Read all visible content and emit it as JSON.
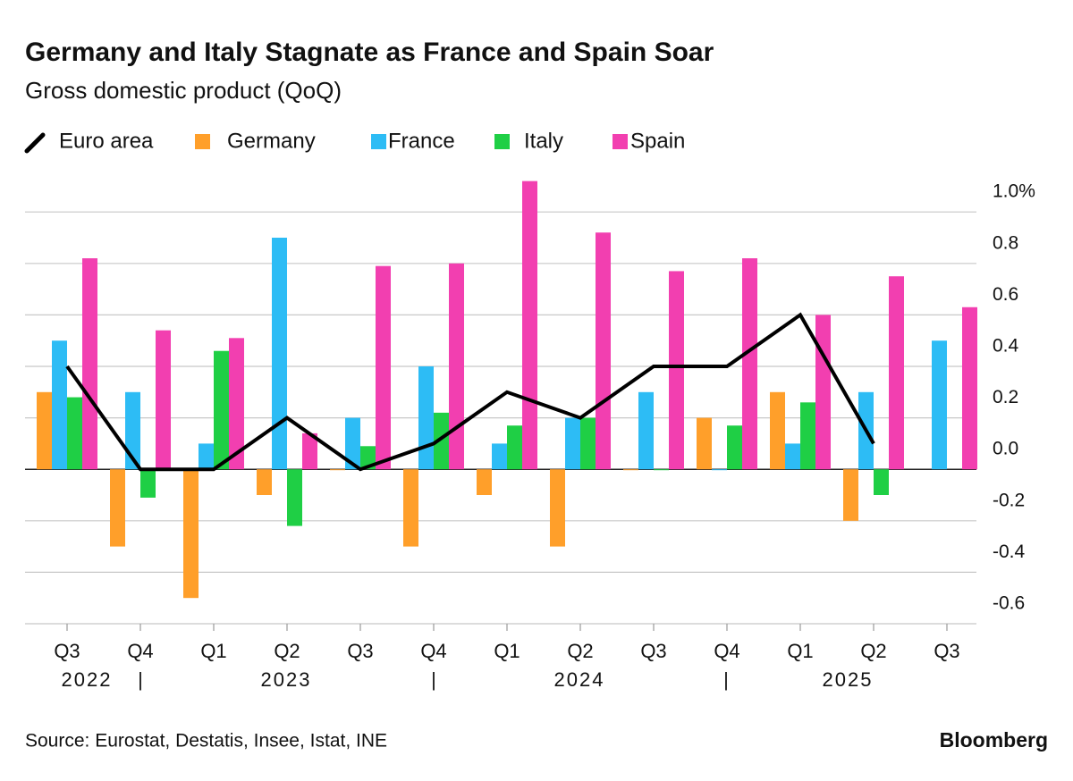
{
  "chart_data": {
    "type": "bar",
    "title": "Germany and Italy Stagnate as France and Spain Soar",
    "subtitle": "Gross domestic product (QoQ)",
    "source": "Source: Eurostat, Destatis, Insee, Istat, INE",
    "brand": "Bloomberg",
    "categories": [
      "Q3",
      "Q4",
      "Q1",
      "Q2",
      "Q3",
      "Q4",
      "Q1",
      "Q2",
      "Q3",
      "Q4",
      "Q1",
      "Q2",
      "Q3"
    ],
    "years": [
      "2022",
      "2023",
      "2024",
      "2025"
    ],
    "series": [
      {
        "name": "Euro area",
        "type": "line",
        "color": "#000000",
        "values": [
          0.4,
          0.0,
          0.0,
          0.2,
          0.0,
          0.1,
          0.3,
          0.2,
          0.4,
          0.4,
          0.6,
          0.1,
          null
        ]
      },
      {
        "name": "Germany",
        "type": "bar",
        "color": "#ff9f2a",
        "values": [
          0.3,
          -0.3,
          -0.5,
          -0.1,
          0.0,
          -0.3,
          -0.1,
          -0.3,
          0.0,
          0.2,
          0.3,
          -0.2,
          null
        ]
      },
      {
        "name": "France",
        "type": "bar",
        "color": "#2dbcf5",
        "values": [
          0.5,
          0.3,
          0.1,
          0.9,
          0.2,
          0.4,
          0.1,
          0.2,
          0.3,
          0.0,
          0.1,
          0.3,
          0.5
        ]
      },
      {
        "name": "Italy",
        "type": "bar",
        "color": "#1fcf45",
        "values": [
          0.28,
          -0.11,
          0.46,
          -0.22,
          0.09,
          0.22,
          0.17,
          0.2,
          0.0,
          0.17,
          0.26,
          -0.1,
          null
        ]
      },
      {
        "name": "Spain",
        "type": "bar",
        "color": "#f23fb0",
        "values": [
          0.82,
          0.54,
          0.51,
          0.14,
          0.79,
          0.8,
          1.12,
          0.92,
          0.77,
          0.82,
          0.6,
          0.75,
          0.63
        ]
      }
    ],
    "ylim": [
      -0.6,
      1.2
    ],
    "yticks": [
      -0.6,
      -0.4,
      -0.2,
      {
        "value": 0,
        "label": "0.0"
      },
      0.2,
      0.4,
      0.6,
      0.8,
      {
        "value": 1,
        "label": "1.0%"
      }
    ],
    "grid": true
  }
}
